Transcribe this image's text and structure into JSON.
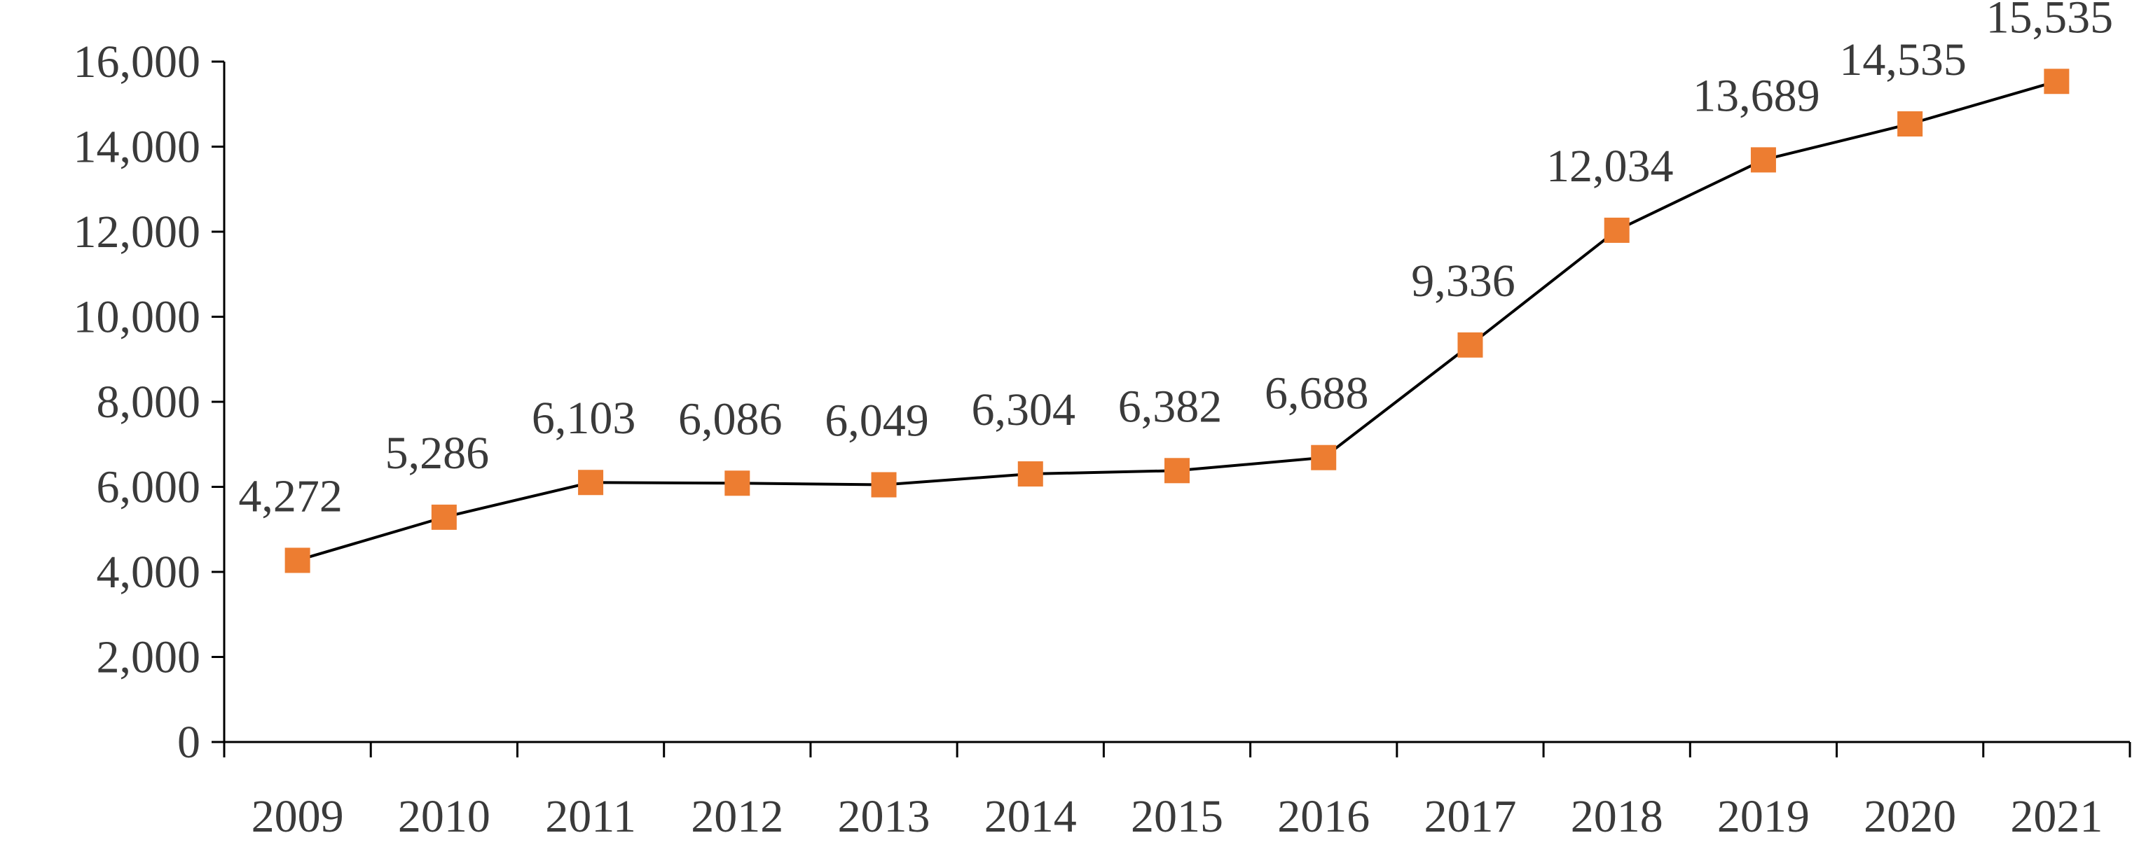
{
  "chart_data": {
    "type": "line",
    "categories": [
      "2009",
      "2010",
      "2011",
      "2012",
      "2013",
      "2014",
      "2015",
      "2016",
      "2017",
      "2018",
      "2019",
      "2020",
      "2021"
    ],
    "series": [
      {
        "values": [
          4272,
          5286,
          6103,
          6086,
          6049,
          6304,
          6382,
          6688,
          9336,
          12034,
          13689,
          14535,
          15535
        ]
      }
    ],
    "data_labels": [
      "4,272",
      "5,286",
      "6,103",
      "6,086",
      "6,049",
      "6,304",
      "6,382",
      "6,688",
      "9,336",
      "12,034",
      "13,689",
      "14,535",
      "15,535"
    ],
    "y_ticks": [
      0,
      2000,
      4000,
      6000,
      8000,
      10000,
      12000,
      14000,
      16000
    ],
    "y_tick_labels": [
      "0",
      "2,000",
      "4,000",
      "6,000",
      "8,000",
      "10,000",
      "12,000",
      "14,000",
      "16,000"
    ],
    "ylim": [
      0,
      16000
    ],
    "title": "",
    "xlabel": "",
    "ylabel": "",
    "grid": false,
    "legend": "none",
    "colors": {
      "line": "#000000",
      "marker": "#ED7D31",
      "text": "#3a3a3a"
    }
  }
}
